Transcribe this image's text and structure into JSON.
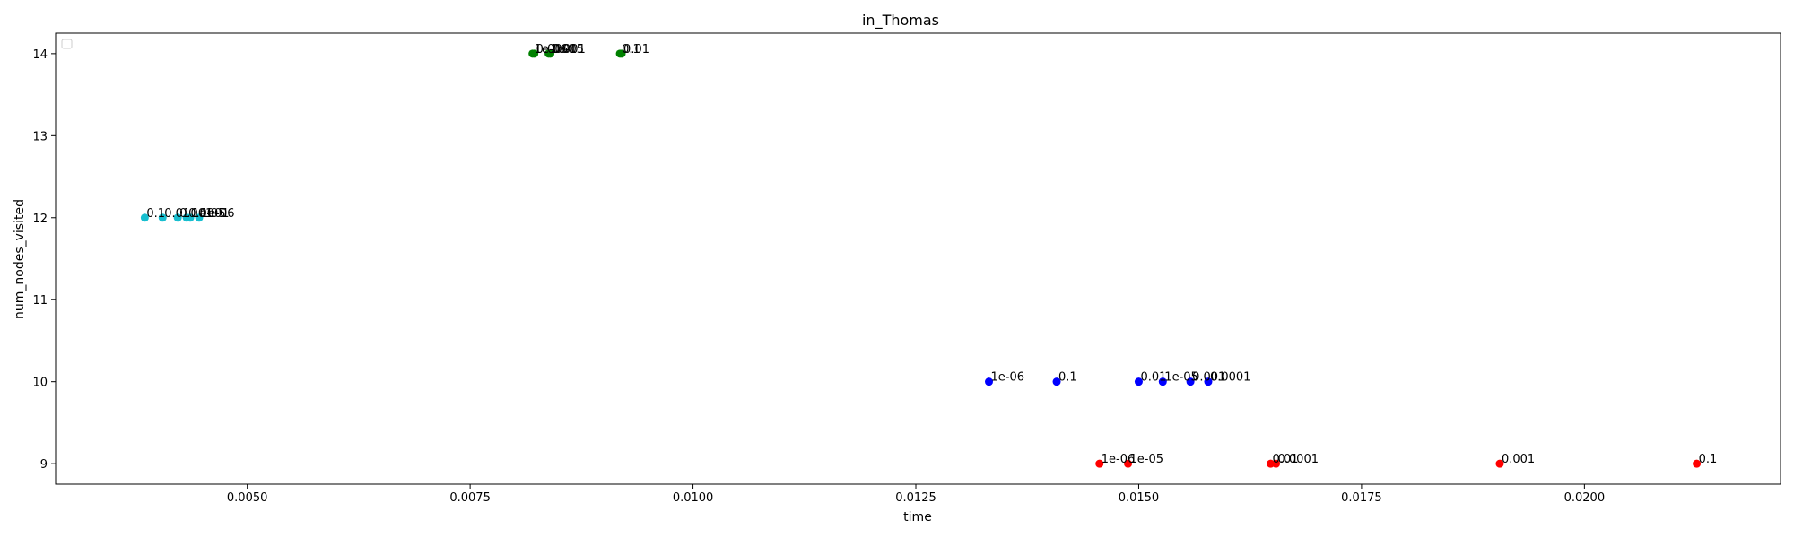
{
  "chart_data": {
    "type": "scatter",
    "title": "in_Thomas",
    "xlabel": "time",
    "ylabel": "num_nodes_visited",
    "xlim": [
      0.00285,
      0.0222
    ],
    "ylim": [
      8.75,
      14.25
    ],
    "x_ticks": [
      0.005,
      0.0075,
      0.01,
      0.0125,
      0.015,
      0.0175,
      0.02
    ],
    "x_tick_labels": [
      "0.0050",
      "0.0075",
      "0.0100",
      "0.0125",
      "0.0150",
      "0.0175",
      "0.0200"
    ],
    "y_ticks": [
      9,
      10,
      11,
      12,
      13,
      14
    ],
    "y_tick_labels": [
      "9",
      "10",
      "11",
      "12",
      "13",
      "14"
    ],
    "grid": false,
    "legend": {
      "placement": "top-left",
      "entries": []
    },
    "series": [
      {
        "color": "#17becf",
        "points": [
          {
            "x": 0.00385,
            "y": 12,
            "label": "0.1"
          },
          {
            "x": 0.00405,
            "y": 12,
            "label": "0.01"
          },
          {
            "x": 0.00422,
            "y": 12,
            "label": "0.001"
          },
          {
            "x": 0.00432,
            "y": 12,
            "label": "0.0001"
          },
          {
            "x": 0.00436,
            "y": 12,
            "label": "1e-05"
          },
          {
            "x": 0.00446,
            "y": 12,
            "label": "1e-06"
          }
        ]
      },
      {
        "color": "#008000",
        "points": [
          {
            "x": 0.0082,
            "y": 14,
            "label": "1e-06"
          },
          {
            "x": 0.00822,
            "y": 14,
            "label": "0.0001"
          },
          {
            "x": 0.00838,
            "y": 14,
            "label": "1e-05"
          },
          {
            "x": 0.0084,
            "y": 14,
            "label": "0.001"
          },
          {
            "x": 0.00918,
            "y": 14,
            "label": "0.1"
          },
          {
            "x": 0.0092,
            "y": 14,
            "label": "0.01"
          }
        ]
      },
      {
        "color": "#0000ff",
        "points": [
          {
            "x": 0.01332,
            "y": 10,
            "label": "1e-06"
          },
          {
            "x": 0.01408,
            "y": 10,
            "label": "0.1"
          },
          {
            "x": 0.015,
            "y": 10,
            "label": "0.01"
          },
          {
            "x": 0.01527,
            "y": 10,
            "label": "1e-05"
          },
          {
            "x": 0.01558,
            "y": 10,
            "label": "0.001"
          },
          {
            "x": 0.01578,
            "y": 10,
            "label": "0.0001"
          }
        ]
      },
      {
        "color": "#ff0000",
        "points": [
          {
            "x": 0.01456,
            "y": 9,
            "label": "1e-06"
          },
          {
            "x": 0.01488,
            "y": 9,
            "label": "1e-05"
          },
          {
            "x": 0.01648,
            "y": 9,
            "label": "0.01"
          },
          {
            "x": 0.01654,
            "y": 9,
            "label": "0.0001"
          },
          {
            "x": 0.01905,
            "y": 9,
            "label": "0.001"
          },
          {
            "x": 0.02126,
            "y": 9,
            "label": "0.1"
          }
        ]
      }
    ]
  }
}
